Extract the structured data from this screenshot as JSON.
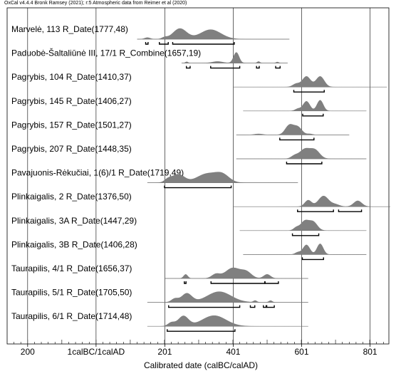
{
  "header": "OxCal v4.4.4 Bronk Ramsey (2021); r:5 Atmospheric data from Reimer et al (2020)",
  "chart_data": {
    "type": "area",
    "title": "",
    "xlabel": "Calibrated date (calBC/calAD)",
    "ylabel": "",
    "xlim": [
      -260,
      856
    ],
    "x_ticks": [
      {
        "value": -200,
        "label": "200"
      },
      {
        "value": 0,
        "label": "1calBC/1calAD"
      },
      {
        "value": 201,
        "label": "201"
      },
      {
        "value": 401,
        "label": "401"
      },
      {
        "value": 601,
        "label": "601"
      },
      {
        "value": 801,
        "label": "801"
      }
    ],
    "grid": true,
    "series": [
      {
        "name": "Marvelė, 113 R_Date(1777,48)",
        "range": [
          120,
          565
        ],
        "peaks": [
          [
            245,
            20,
            1.0
          ],
          [
            335,
            30,
            0.9
          ],
          [
            150,
            8,
            0.15
          ],
          [
            200,
            8,
            0.15
          ]
        ],
        "brackets": [
          [
            145,
            152
          ],
          [
            185,
            211
          ],
          [
            224,
            404
          ]
        ]
      },
      {
        "name": "Paduobė-Šaltaliūnė III, 17/1 R_Combine(1657,19)",
        "range": [
          250,
          560
        ],
        "peaks": [
          [
            410,
            8,
            1.0
          ],
          [
            265,
            4,
            0.12
          ],
          [
            355,
            15,
            0.15
          ],
          [
            475,
            4,
            0.15
          ],
          [
            530,
            4,
            0.1
          ]
        ],
        "brackets": [
          [
            264,
            275
          ],
          [
            335,
            420
          ],
          [
            469,
            477
          ],
          [
            525,
            538
          ]
        ]
      },
      {
        "name": "Pagrybis, 104 R_Date(1410,37)",
        "range": [
          400,
          850
        ],
        "peaks": [
          [
            615,
            12,
            1.0
          ],
          [
            655,
            12,
            1.0
          ],
          [
            585,
            10,
            0.3
          ]
        ],
        "brackets": [
          [
            578,
            667
          ]
        ]
      },
      {
        "name": "Pagrybis, 145 R_Date(1406,27)",
        "range": [
          430,
          790
        ],
        "peaks": [
          [
            615,
            10,
            0.9
          ],
          [
            655,
            9,
            1.0
          ],
          [
            590,
            8,
            0.2
          ]
        ],
        "brackets": [
          [
            604,
            664
          ]
        ]
      },
      {
        "name": "Pagrybis, 157 R_Date(1501,27)",
        "range": [
          410,
          740
        ],
        "peaks": [
          [
            565,
            12,
            1.0
          ],
          [
            590,
            12,
            0.8
          ],
          [
            475,
            12,
            0.1
          ],
          [
            625,
            8,
            0.1
          ]
        ],
        "brackets": [
          [
            537,
            637
          ]
        ]
      },
      {
        "name": "Pagrybis, 207 R_Date(1448,35)",
        "range": [
          410,
          790
        ],
        "peaks": [
          [
            610,
            15,
            1.0
          ],
          [
            640,
            14,
            0.9
          ],
          [
            580,
            10,
            0.3
          ]
        ],
        "brackets": [
          [
            557,
            660
          ]
        ]
      },
      {
        "name": "Pavajuonis-Rėkučiai, 1(6)/1 R_Date(1719,49)",
        "range": [
          150,
          590
        ],
        "peaks": [
          [
            240,
            18,
            0.85
          ],
          [
            325,
            30,
            0.9
          ],
          [
            370,
            20,
            0.7
          ],
          [
            210,
            10,
            0.3
          ]
        ],
        "brackets": [
          [
            200,
            395
          ]
        ]
      },
      {
        "name": "Plinkaigalis, 2 R_Date(1376,50)",
        "range": [
          400,
          860
        ],
        "peaks": [
          [
            620,
            10,
            0.6
          ],
          [
            665,
            15,
            1.0
          ],
          [
            765,
            12,
            0.55
          ],
          [
            700,
            12,
            0.2
          ]
        ],
        "brackets": [
          [
            589,
            694
          ],
          [
            709,
            776
          ]
        ]
      },
      {
        "name": "Plinkaigalis, 3A R_Date(1447,29)",
        "range": [
          420,
          790
        ],
        "peaks": [
          [
            610,
            12,
            1.0
          ],
          [
            635,
            12,
            0.9
          ],
          [
            585,
            8,
            0.3
          ]
        ],
        "brackets": [
          [
            574,
            651
          ]
        ]
      },
      {
        "name": "Plinkaigalis, 3B R_Date(1406,28)",
        "range": [
          430,
          790
        ],
        "peaks": [
          [
            615,
            10,
            0.9
          ],
          [
            655,
            9,
            1.0
          ],
          [
            590,
            8,
            0.2
          ]
        ],
        "brackets": [
          [
            603,
            665
          ]
        ]
      },
      {
        "name": "Taurapilis, 4/1 R_Date(1656,37)",
        "range": [
          200,
          620
        ],
        "peaks": [
          [
            262,
            6,
            0.35
          ],
          [
            400,
            22,
            0.9
          ],
          [
            350,
            12,
            0.35
          ],
          [
            440,
            15,
            0.5
          ],
          [
            500,
            10,
            0.35
          ]
        ],
        "brackets": [
          [
            258,
            263
          ],
          [
            336,
            493
          ],
          [
            494,
            533
          ]
        ]
      },
      {
        "name": "Taurapilis, 5/1 R_Date(1705,50)",
        "range": [
          150,
          620
        ],
        "peaks": [
          [
            265,
            15,
            0.75
          ],
          [
            360,
            35,
            0.9
          ],
          [
            230,
            10,
            0.3
          ],
          [
            465,
            5,
            0.15
          ],
          [
            510,
            5,
            0.15
          ]
        ],
        "brackets": [
          [
            212,
            420
          ],
          [
            451,
            464
          ],
          [
            489,
            497
          ],
          [
            499,
            521
          ]
        ]
      },
      {
        "name": "Taurapilis, 6/1 R_Date(1714,48)",
        "range": [
          150,
          620
        ],
        "peaks": [
          [
            255,
            15,
            0.85
          ],
          [
            345,
            35,
            0.9
          ],
          [
            220,
            10,
            0.3
          ]
        ],
        "brackets": [
          [
            208,
            406
          ]
        ]
      }
    ]
  }
}
